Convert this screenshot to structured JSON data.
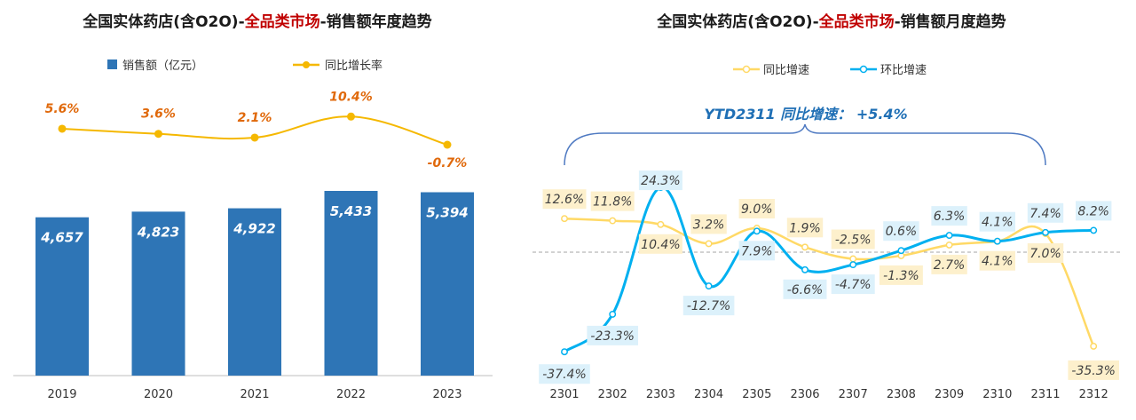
{
  "chart_data": [
    {
      "type": "bar",
      "title_prefix": "全国实体药店(含O2O)-",
      "title_highlight": "全品类市场",
      "title_suffix": "-销售额年度趋势",
      "categories": [
        "2019",
        "2020",
        "2021",
        "2022",
        "2023"
      ],
      "series": [
        {
          "name": "销售额（亿元）",
          "type": "bar",
          "values": [
            4657,
            4823,
            4922,
            5433,
            5394
          ],
          "labels": [
            "4,657",
            "4,823",
            "4,922",
            "5,433",
            "5,394"
          ],
          "color": "#2e75b6"
        },
        {
          "name": "同比增长率",
          "type": "line",
          "values": [
            5.6,
            3.6,
            2.1,
            10.4,
            -0.7
          ],
          "labels": [
            "5.6%",
            "3.6%",
            "2.1%",
            "10.4%",
            "-0.7%"
          ],
          "color": "#f5b800"
        }
      ],
      "legend_position": "top",
      "grid": false
    },
    {
      "type": "line",
      "title_prefix": "全国实体药店(含O2O)-",
      "title_highlight": "全品类市场",
      "title_suffix": "-销售额月度趋势",
      "categories": [
        "2301",
        "2302",
        "2303",
        "2304",
        "2305",
        "2306",
        "2307",
        "2308",
        "2309",
        "2310",
        "2311",
        "2312"
      ],
      "series": [
        {
          "name": "同比增速",
          "values": [
            12.6,
            11.8,
            10.4,
            3.2,
            9.0,
            1.9,
            -2.5,
            -1.3,
            2.7,
            4.1,
            7.0,
            -35.3
          ],
          "labels": [
            "12.6%",
            "11.8%",
            "10.4%",
            "3.2%",
            "9.0%",
            "1.9%",
            "-2.5%",
            "-1.3%",
            "2.7%",
            "4.1%",
            "7.0%",
            "-35.3%"
          ],
          "color": "#ffd966"
        },
        {
          "name": "环比增速",
          "values": [
            -37.4,
            -23.3,
            24.3,
            -12.7,
            7.9,
            -6.6,
            -4.7,
            0.6,
            6.3,
            4.1,
            7.4,
            8.2
          ],
          "labels": [
            "-37.4%",
            "-23.3%",
            "24.3%",
            "-12.7%",
            "7.9%",
            "-6.6%",
            "-4.7%",
            "0.6%",
            "6.3%",
            "4.1%",
            "7.4%",
            "8.2%"
          ],
          "color": "#00b0f0"
        }
      ],
      "annotation": "YTD2311 同比增速： +5.4%",
      "ylim": [
        -40,
        30
      ],
      "legend_position": "top",
      "grid": false,
      "zero_line": true
    }
  ]
}
